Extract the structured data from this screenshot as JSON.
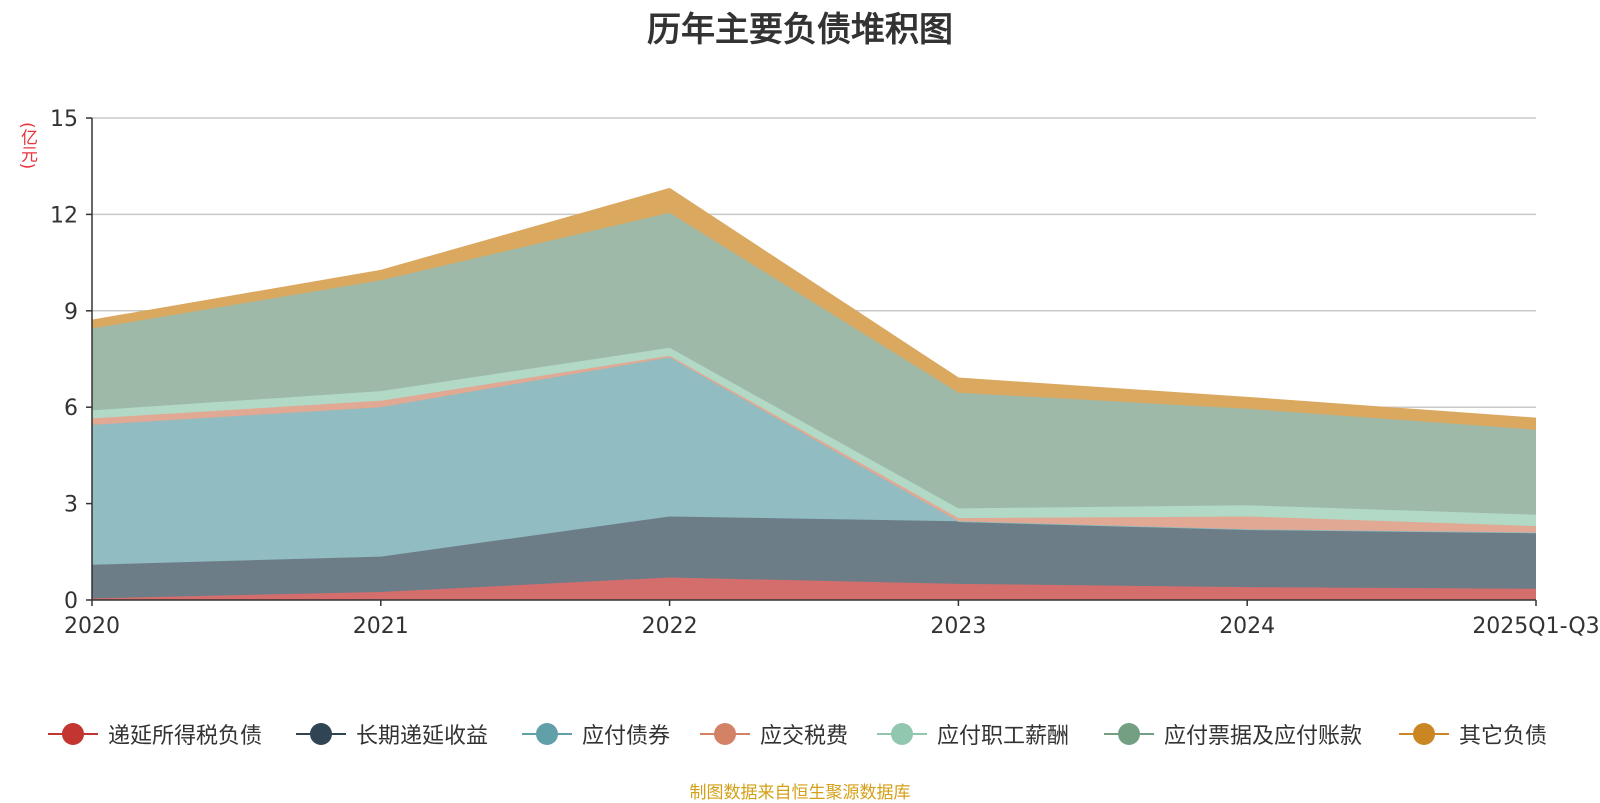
{
  "chart_data": {
    "type": "area",
    "stacked": true,
    "title": "历年主要负债堆积图",
    "ylabel": "(亿元)",
    "xlabel": "",
    "categories": [
      "2020",
      "2021",
      "2022",
      "2023",
      "2024",
      "2025Q1-Q3"
    ],
    "ylim": [
      0,
      15
    ],
    "yticks": [
      0,
      3,
      6,
      9,
      12,
      15
    ],
    "grid": true,
    "legend_position": "bottom",
    "series": [
      {
        "name": "递延所得税负债",
        "color": "#c23531",
        "area_color": "#d46e6c",
        "values": [
          0.05,
          0.25,
          0.7,
          0.5,
          0.4,
          0.35
        ]
      },
      {
        "name": "长期递延收益",
        "color": "#2f4554",
        "area_color": "#6d7d88",
        "values": [
          1.05,
          1.1,
          1.9,
          1.95,
          1.8,
          1.75
        ]
      },
      {
        "name": "应付债券",
        "color": "#61a0a8",
        "area_color": "#90bcc2",
        "values": [
          4.35,
          4.65,
          4.95,
          0.0,
          0.0,
          0.0
        ]
      },
      {
        "name": "应交税费",
        "color": "#d48265",
        "area_color": "#e1a893",
        "values": [
          0.2,
          0.2,
          0.05,
          0.1,
          0.4,
          0.2
        ]
      },
      {
        "name": "应付职工薪酬",
        "color": "#91c7ae",
        "area_color": "#b2d8c6",
        "values": [
          0.25,
          0.3,
          0.25,
          0.3,
          0.35,
          0.35
        ]
      },
      {
        "name": "应付票据及应付账款",
        "color": "#749f83",
        "area_color": "#9eb9a8",
        "values": [
          2.55,
          3.45,
          4.2,
          3.6,
          3.0,
          2.65
        ]
      },
      {
        "name": "其它负债",
        "color": "#ca8622",
        "area_color": "#daa85f",
        "values": [
          0.25,
          0.3,
          0.75,
          0.45,
          0.35,
          0.35
        ]
      }
    ]
  },
  "source_note": "制图数据来自恒生聚源数据库"
}
